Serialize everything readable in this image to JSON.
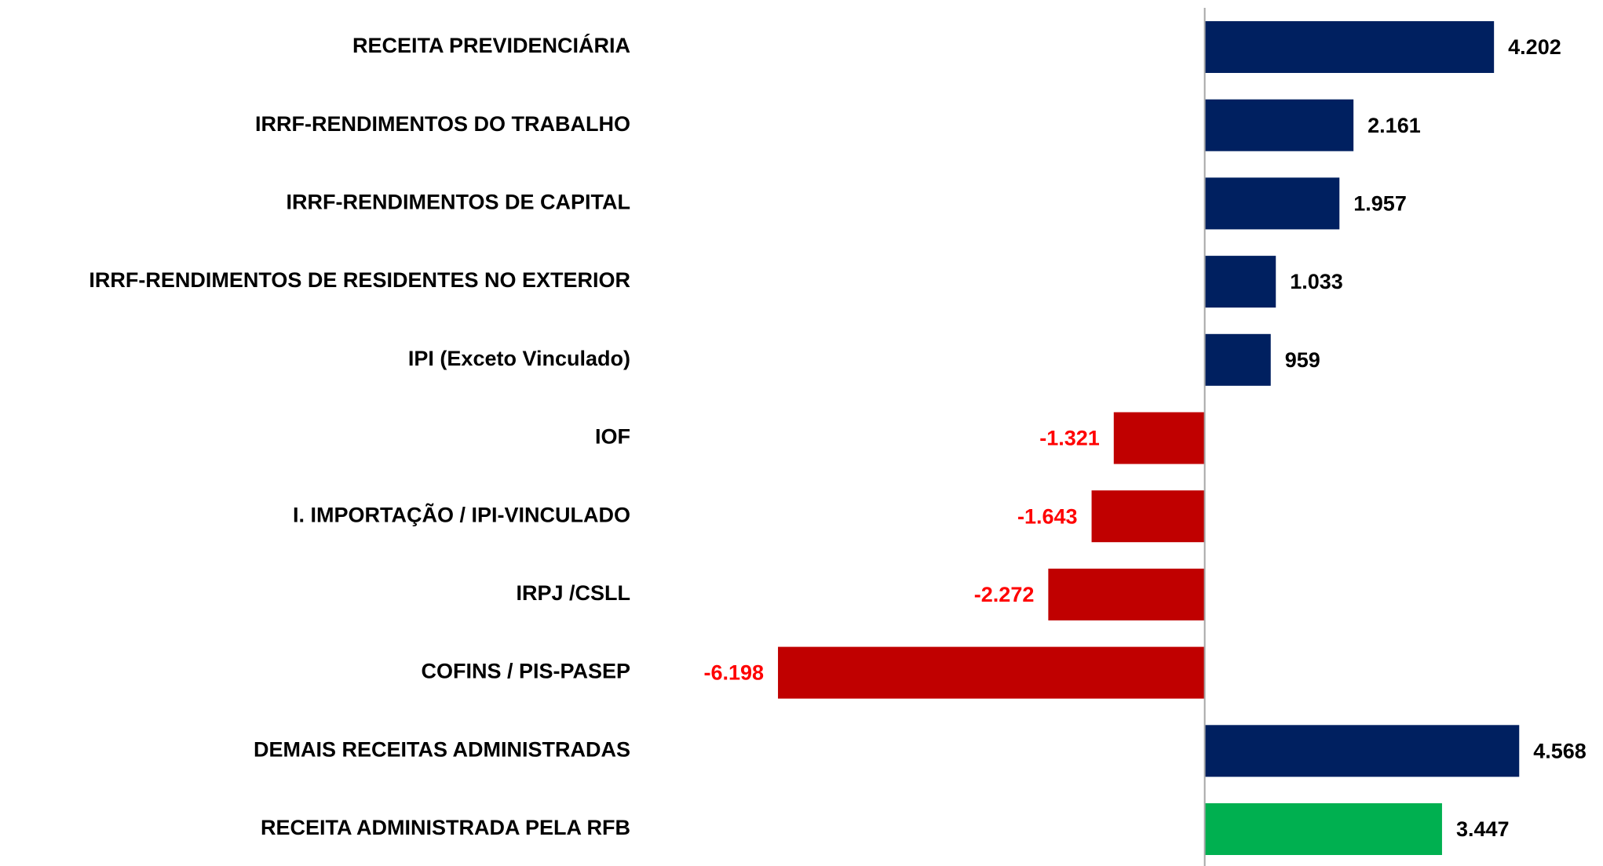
{
  "chart_data": {
    "type": "hbar",
    "categories": [
      "RECEITA PREVIDENCIÁRIA",
      "IRRF-RENDIMENTOS DO TRABALHO",
      "IRRF-RENDIMENTOS DE CAPITAL",
      "IRRF-RENDIMENTOS DE RESIDENTES NO EXTERIOR",
      "IPI (Exceto Vinculado)",
      "IOF",
      "I. IMPORTAÇÃO / IPI-VINCULADO",
      "IRPJ /CSLL",
      "COFINS / PIS-PASEP",
      "DEMAIS RECEITAS ADMINISTRADAS",
      "RECEITA ADMINISTRADA PELA RFB"
    ],
    "values": [
      4202,
      2161,
      1957,
      1033,
      959,
      -1321,
      -1643,
      -2272,
      -6198,
      4568,
      3447
    ],
    "value_labels": [
      "4.202",
      "2.161",
      "1.957",
      "1.033",
      "959",
      "-1.321",
      "-1.643",
      "-2.272",
      "-6.198",
      "4.568",
      "3.447"
    ],
    "colors": [
      "#002060",
      "#002060",
      "#002060",
      "#002060",
      "#002060",
      "#c00000",
      "#c00000",
      "#c00000",
      "#c00000",
      "#002060",
      "#00b050"
    ],
    "label_color": "#000000",
    "negative_label_color": "#ff0000",
    "xlim": [
      -8000,
      5500
    ]
  }
}
